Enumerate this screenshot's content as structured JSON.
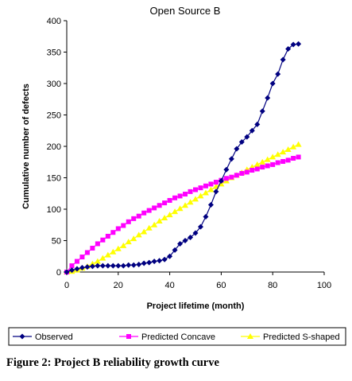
{
  "caption": "Figure 2: Project B reliability growth curve",
  "chart_data": {
    "type": "line",
    "title": "Open Source B",
    "xlabel": "Project lifetime (month)",
    "ylabel": "Cumulative number of defects",
    "xlim": [
      0,
      100
    ],
    "ylim": [
      0,
      400
    ],
    "xticks": [
      0,
      20,
      40,
      60,
      80,
      100
    ],
    "yticks": [
      0,
      50,
      100,
      150,
      200,
      250,
      300,
      350,
      400
    ],
    "grid": false,
    "legend_position": "bottom",
    "series": [
      {
        "name": "Observed",
        "color": "#000080",
        "marker": "diamond",
        "x": [
          0,
          2,
          4,
          6,
          8,
          10,
          12,
          14,
          16,
          18,
          20,
          22,
          24,
          26,
          28,
          30,
          32,
          34,
          36,
          38,
          40,
          42,
          44,
          46,
          48,
          50,
          52,
          54,
          56,
          58,
          60,
          62,
          64,
          66,
          68,
          70,
          72,
          74,
          76,
          78,
          80,
          82,
          84,
          86,
          88,
          90
        ],
        "y": [
          0,
          3,
          5,
          7,
          8,
          9,
          10,
          10,
          10,
          10,
          10,
          10,
          11,
          11,
          12,
          14,
          15,
          17,
          18,
          20,
          25,
          35,
          45,
          50,
          55,
          62,
          72,
          88,
          107,
          128,
          145,
          163,
          180,
          196,
          207,
          215,
          225,
          235,
          256,
          277,
          300,
          315,
          338,
          355,
          362,
          363
        ]
      },
      {
        "name": "Predicted Concave",
        "color": "#ff00ff",
        "marker": "square",
        "x": [
          0,
          2,
          4,
          6,
          8,
          10,
          12,
          14,
          16,
          18,
          20,
          22,
          24,
          26,
          28,
          30,
          32,
          34,
          36,
          38,
          40,
          42,
          44,
          46,
          48,
          50,
          52,
          54,
          56,
          58,
          60,
          62,
          64,
          66,
          68,
          70,
          72,
          74,
          76,
          78,
          80,
          82,
          84,
          86,
          88,
          90
        ],
        "y": [
          0,
          10,
          17,
          24,
          31,
          38,
          45,
          51,
          57,
          63,
          69,
          74,
          80,
          85,
          89,
          94,
          98,
          102,
          106,
          110,
          114,
          118,
          121,
          124,
          128,
          131,
          134,
          137,
          140,
          143,
          146,
          149,
          151,
          154,
          157,
          159,
          162,
          164,
          167,
          169,
          171,
          174,
          176,
          178,
          181,
          183
        ]
      },
      {
        "name": "Predicted S-shaped",
        "color": "#ffff00",
        "marker": "triangle",
        "x": [
          0,
          2,
          4,
          6,
          8,
          10,
          12,
          14,
          16,
          18,
          20,
          22,
          24,
          26,
          28,
          30,
          32,
          34,
          36,
          38,
          40,
          42,
          44,
          46,
          48,
          50,
          52,
          54,
          56,
          58,
          60,
          62,
          64,
          66,
          68,
          70,
          72,
          74,
          76,
          78,
          80,
          82,
          84,
          86,
          88,
          90
        ],
        "y": [
          0,
          1,
          3,
          6,
          9,
          13,
          17,
          22,
          27,
          32,
          37,
          42,
          48,
          53,
          59,
          64,
          70,
          75,
          81,
          86,
          91,
          96,
          101,
          106,
          111,
          116,
          121,
          126,
          131,
          136,
          140,
          145,
          150,
          154,
          158,
          163,
          167,
          171,
          175,
          179,
          183,
          187,
          191,
          195,
          199,
          203
        ]
      }
    ]
  }
}
